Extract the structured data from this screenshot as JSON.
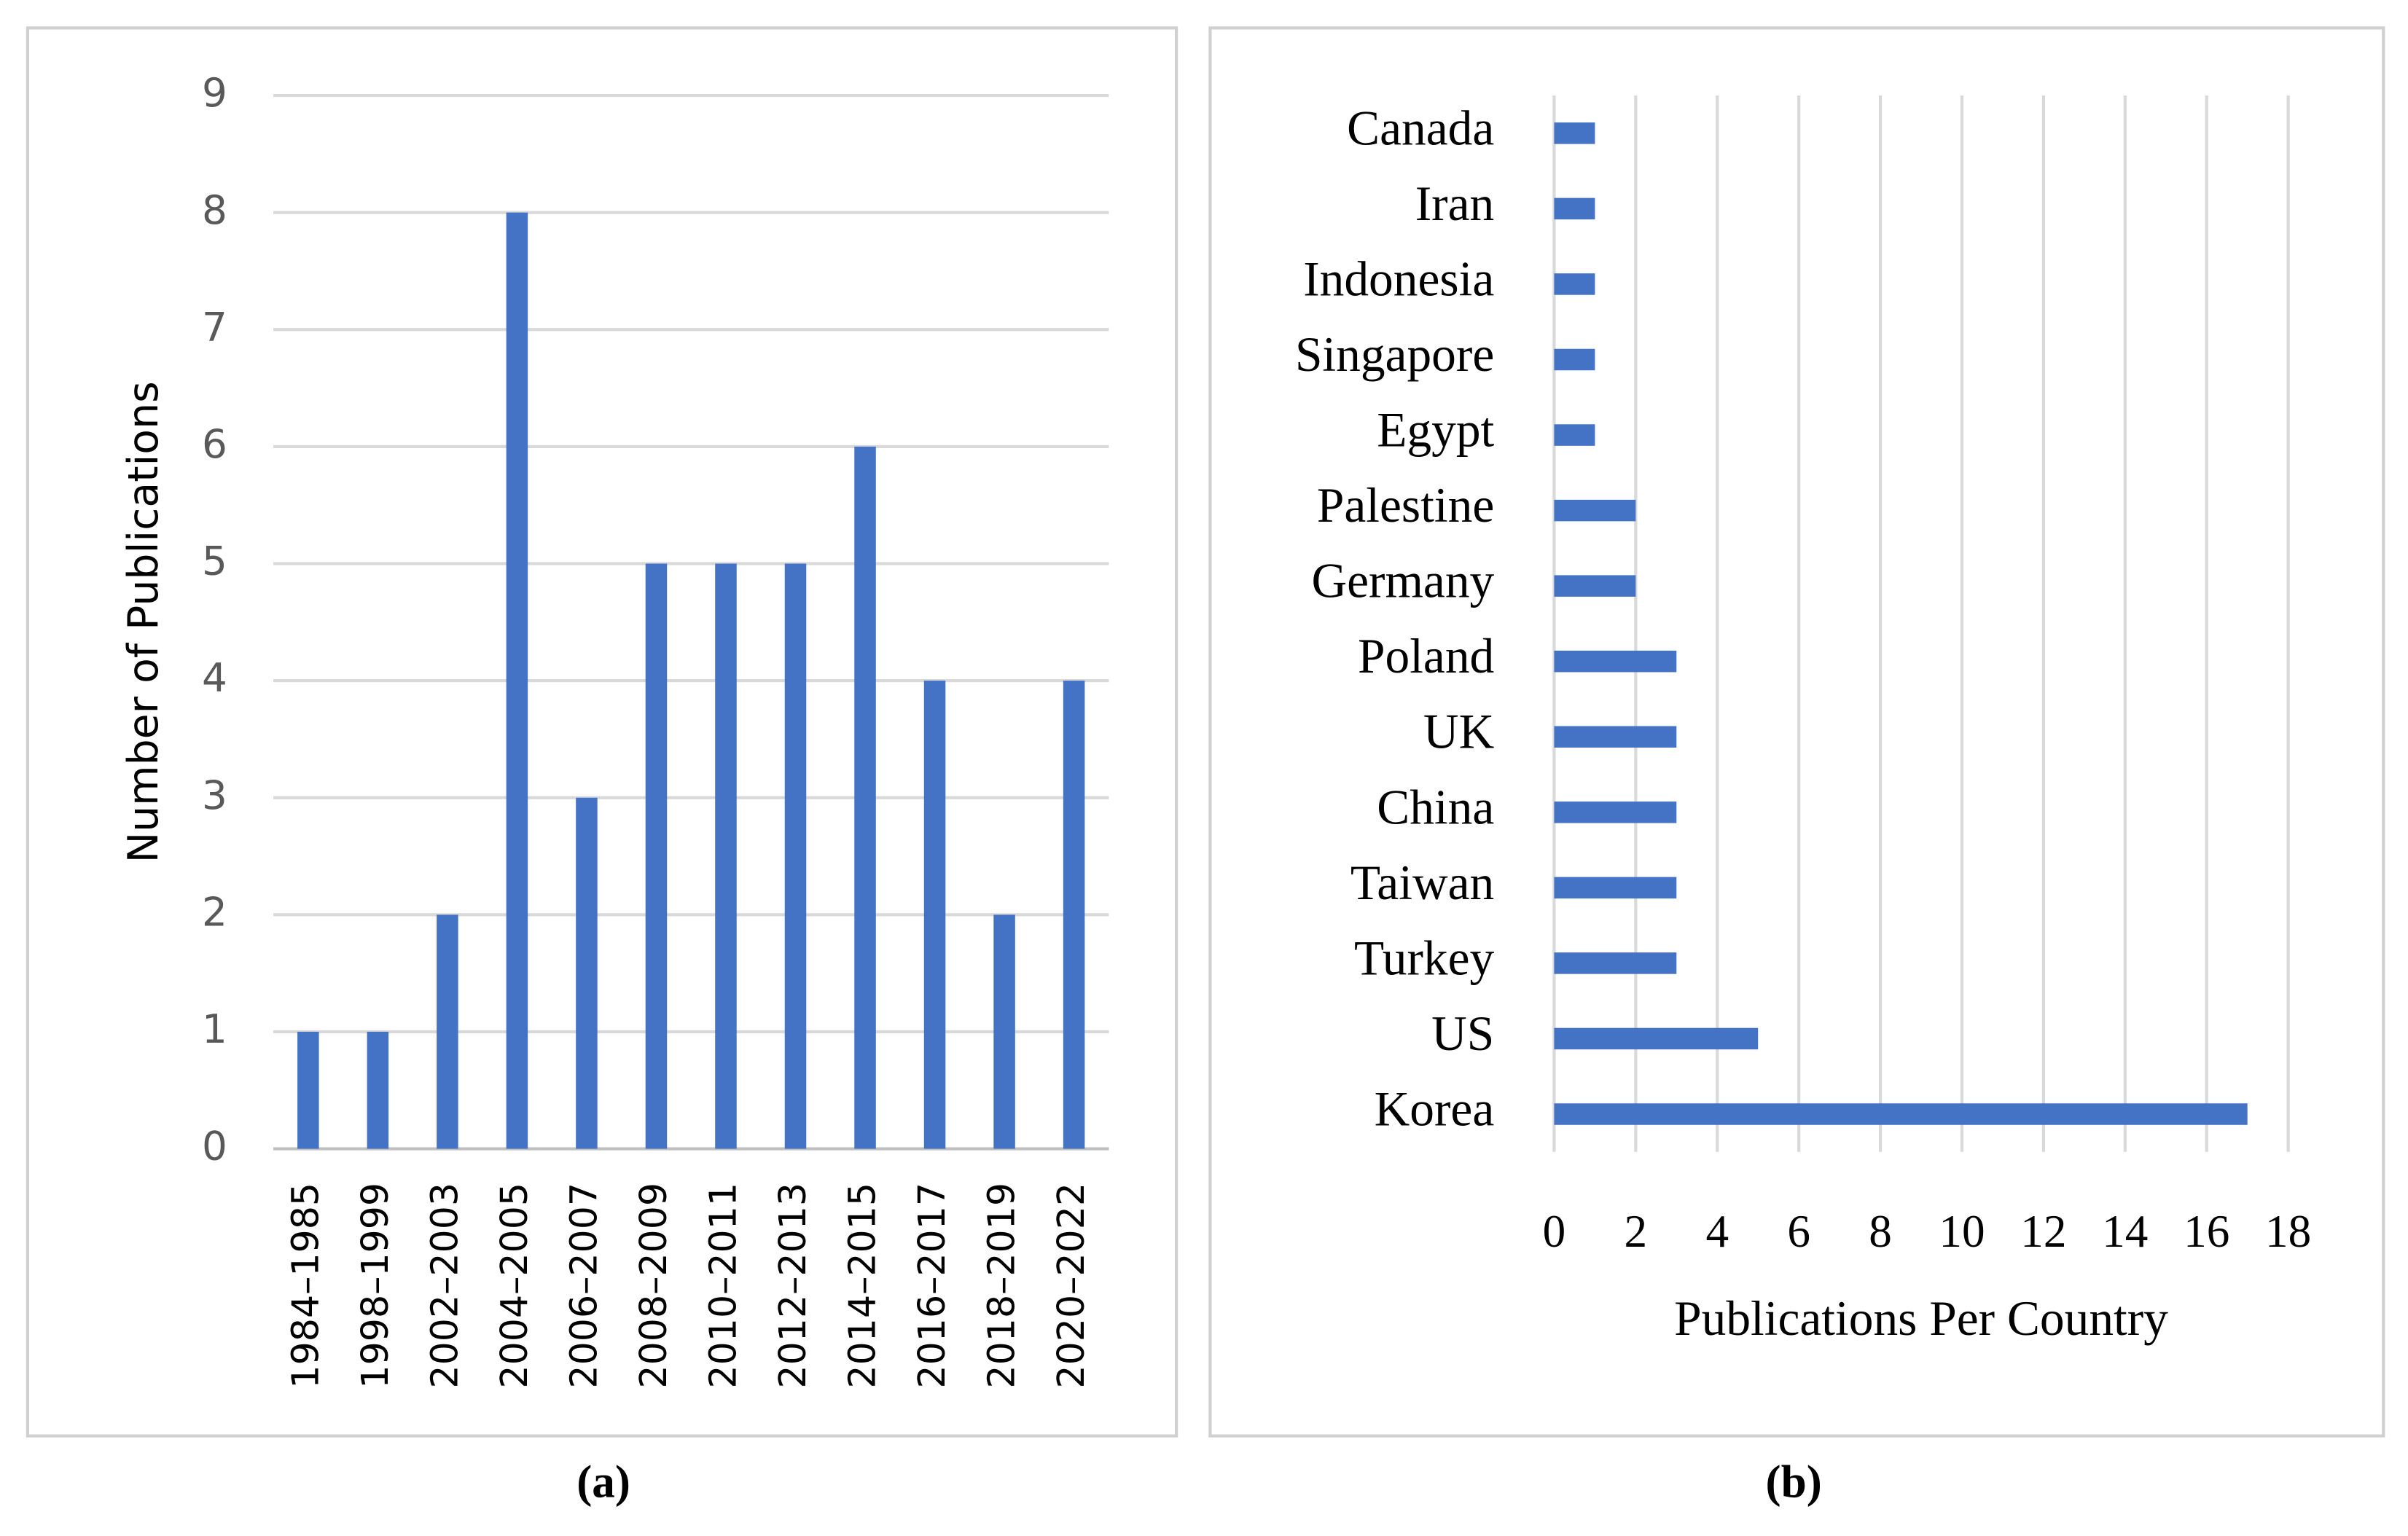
{
  "chart_data": [
    {
      "type": "bar",
      "label": "(a)",
      "y_label": "Number of Publications",
      "categories": [
        "1984–1985",
        "1998–1999",
        "2002–2003",
        "2004–2005",
        "2006–2007",
        "2008–2009",
        "2010–2011",
        "2012–2013",
        "2014–2015",
        "2016–2017",
        "2018–2019",
        "2020–2022"
      ],
      "values": [
        1,
        1,
        2,
        8,
        3,
        5,
        5,
        5,
        6,
        4,
        2,
        4
      ],
      "color": "#4472c4",
      "ylim": [
        0,
        9
      ],
      "yticks": [
        0,
        1,
        2,
        3,
        4,
        5,
        6,
        7,
        8,
        9
      ],
      "grid": true
    },
    {
      "type": "bar",
      "orientation": "horizontal",
      "label": "(b)",
      "x_label": "Publications Per Country",
      "categories": [
        "Canada",
        "Iran",
        "Indonesia",
        "Singapore",
        "Egypt",
        "Palestine",
        "Germany",
        "Poland",
        "UK",
        "China",
        "Taiwan",
        "Turkey",
        "US",
        "Korea"
      ],
      "values": [
        1,
        1,
        1,
        1,
        1,
        2,
        2,
        3,
        3,
        3,
        3,
        3,
        5,
        17
      ],
      "color": "#4472c4",
      "xlim": [
        0,
        18
      ],
      "xticks": [
        0,
        2,
        4,
        6,
        8,
        10,
        12,
        14,
        16,
        18
      ],
      "grid": true
    }
  ]
}
